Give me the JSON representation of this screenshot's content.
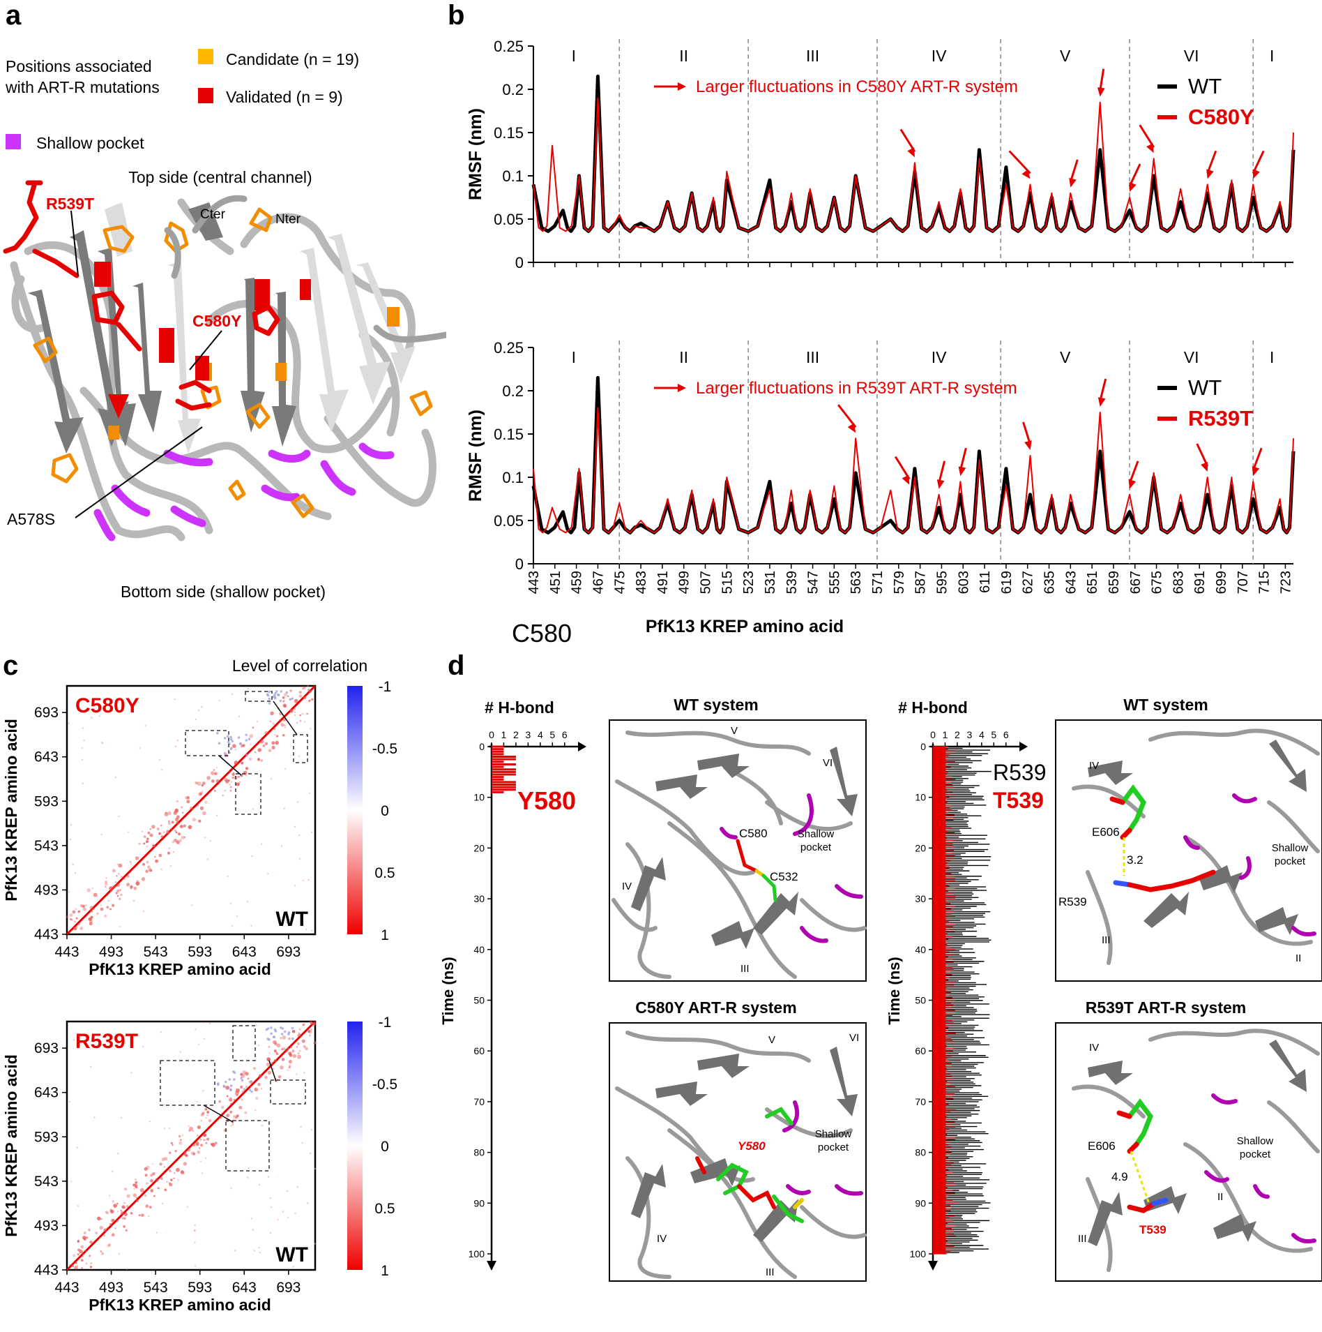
{
  "panels": {
    "a": "a",
    "b": "b",
    "c": "c",
    "d": "d"
  },
  "panel_a": {
    "legend_title_line1": "Positions associated",
    "legend_title_line2": "with ART-R mutations",
    "candidate": "Candidate (n = 19)",
    "validated": "Validated (n = 9)",
    "shallow": "Shallow pocket",
    "top_side": "Top side (central channel)",
    "bottom_side": "Bottom side (shallow pocket)",
    "cter": "Cter",
    "nter": "Nter",
    "r539t": "R539T",
    "c580y": "C580Y",
    "a578s": "A578S",
    "colors": {
      "candidate": "#FFB800",
      "validated": "#E60000",
      "shallow": "#CC33FF"
    }
  },
  "panel_b": {
    "ylabel": "RMSF (nm)",
    "xlabel": "PfK13 KREP amino acid",
    "yticks": [
      "0",
      "0.05",
      "0.1",
      "0.15",
      "0.2",
      "0.25"
    ],
    "xticks": [
      "443",
      "451",
      "459",
      "467",
      "475",
      "483",
      "491",
      "499",
      "507",
      "515",
      "523",
      "531",
      "539",
      "547",
      "555",
      "563",
      "571",
      "579",
      "587",
      "595",
      "603",
      "611",
      "619",
      "627",
      "635",
      "643",
      "651",
      "659",
      "667",
      "675",
      "683",
      "691",
      "699",
      "707",
      "715",
      "723"
    ],
    "blades": [
      "I",
      "II",
      "III",
      "IV",
      "V",
      "VI",
      "I"
    ],
    "top_note": "Larger fluctuations in C580Y ART-R system",
    "bottom_note": "Larger fluctuations in R539T ART-R system",
    "legend_wt": "WT",
    "legend_c580y": "C580Y",
    "legend_r539t": "R539T"
  },
  "panel_c": {
    "title": "Level of correlation",
    "ylabel": "PfK13 KREP amino acid",
    "xlabel": "PfK13 KREP amino acid",
    "ticks": [
      "443",
      "493",
      "543",
      "593",
      "643",
      "693"
    ],
    "top_label": "C580Y",
    "bottom_label": "R539T",
    "wt_label": "WT",
    "colorbar_ticks": [
      "-1",
      "-0.5",
      "0",
      "0.5",
      "1"
    ]
  },
  "panel_d": {
    "hbond_label": "# H-bond",
    "hbond_ticks": [
      "0",
      "1",
      "2",
      "3",
      "4",
      "5",
      "6"
    ],
    "time_label": "Time (ns)",
    "time_ticks": [
      "0",
      "10",
      "20",
      "30",
      "40",
      "50",
      "60",
      "70",
      "80",
      "90",
      "100"
    ],
    "c580": "C580",
    "y580": "Y580",
    "r539": "R539",
    "t539": "T539",
    "wt_system": "WT system",
    "c580y_system": "C580Y ART-R system",
    "r539t_system": "R539T ART-R system",
    "shallow1": "Shallow",
    "shallow2": "pocket",
    "l_c580": "C580",
    "l_c532": "C532",
    "l_y580": "Y580",
    "l_e606": "E606",
    "l_r539": "R539",
    "l_t539": "T539",
    "dist_wt": "3.2",
    "dist_mut": "4.9",
    "b_iv": "IV",
    "b_v": "V",
    "b_vi": "VI",
    "b_iii": "III",
    "b_ii": "II"
  },
  "chart_data": [
    {
      "type": "line",
      "title": "",
      "xlabel": "PfK13 KREP amino acid",
      "ylabel": "RMSF (nm)",
      "ylim": [
        0,
        0.25
      ],
      "xlim": [
        443,
        726
      ],
      "series": [
        {
          "name": "WT",
          "peaks_x": [
            443,
            454,
            460,
            467,
            475,
            483,
            493,
            502,
            510,
            515,
            531,
            539,
            546,
            555,
            563,
            576,
            585,
            594,
            602,
            609,
            619,
            628,
            636,
            643,
            654,
            665,
            674,
            684,
            694,
            703,
            711,
            721,
            726
          ],
          "peaks_y": [
            0.09,
            0.06,
            0.1,
            0.215,
            0.05,
            0.045,
            0.07,
            0.08,
            0.07,
            0.095,
            0.095,
            0.07,
            0.08,
            0.075,
            0.1,
            0.05,
            0.105,
            0.065,
            0.08,
            0.13,
            0.11,
            0.08,
            0.075,
            0.07,
            0.13,
            0.06,
            0.1,
            0.07,
            0.08,
            0.09,
            0.075,
            0.065,
            0.13
          ]
        },
        {
          "name": "C580Y",
          "peaks_x": [
            443,
            450,
            460,
            467,
            475,
            483,
            493,
            502,
            510,
            515,
            531,
            539,
            546,
            555,
            563,
            576,
            585,
            594,
            602,
            609,
            619,
            628,
            636,
            643,
            654,
            665,
            674,
            684,
            694,
            703,
            711,
            721,
            726
          ],
          "peaks_y": [
            0.09,
            0.135,
            0.1,
            0.19,
            0.055,
            0.04,
            0.07,
            0.08,
            0.075,
            0.105,
            0.085,
            0.08,
            0.085,
            0.075,
            0.1,
            0.05,
            0.115,
            0.07,
            0.085,
            0.12,
            0.09,
            0.09,
            0.08,
            0.08,
            0.185,
            0.075,
            0.12,
            0.085,
            0.09,
            0.095,
            0.09,
            0.07,
            0.15
          ]
        }
      ]
    },
    {
      "type": "line",
      "title": "",
      "xlabel": "PfK13 KREP amino acid",
      "ylabel": "RMSF (nm)",
      "ylim": [
        0,
        0.25
      ],
      "xlim": [
        443,
        726
      ],
      "series": [
        {
          "name": "WT",
          "peaks_x": [
            443,
            454,
            460,
            467,
            475,
            483,
            493,
            502,
            510,
            515,
            531,
            539,
            546,
            555,
            563,
            576,
            585,
            594,
            602,
            609,
            619,
            628,
            636,
            643,
            654,
            665,
            674,
            684,
            694,
            703,
            711,
            721,
            726
          ],
          "peaks_y": [
            0.09,
            0.06,
            0.105,
            0.215,
            0.05,
            0.045,
            0.07,
            0.08,
            0.07,
            0.095,
            0.095,
            0.07,
            0.08,
            0.075,
            0.105,
            0.05,
            0.11,
            0.065,
            0.08,
            0.13,
            0.11,
            0.08,
            0.075,
            0.07,
            0.13,
            0.06,
            0.1,
            0.07,
            0.08,
            0.09,
            0.075,
            0.065,
            0.13
          ]
        },
        {
          "name": "R539T",
          "peaks_x": [
            443,
            450,
            460,
            467,
            475,
            483,
            493,
            502,
            510,
            515,
            531,
            539,
            546,
            555,
            563,
            576,
            585,
            594,
            602,
            609,
            619,
            628,
            636,
            643,
            654,
            665,
            674,
            684,
            694,
            703,
            711,
            721,
            726
          ],
          "peaks_y": [
            0.11,
            0.065,
            0.11,
            0.18,
            0.07,
            0.05,
            0.075,
            0.085,
            0.075,
            0.1,
            0.085,
            0.085,
            0.085,
            0.09,
            0.145,
            0.085,
            0.1,
            0.08,
            0.095,
            0.12,
            0.09,
            0.125,
            0.08,
            0.08,
            0.175,
            0.08,
            0.105,
            0.08,
            0.1,
            0.1,
            0.095,
            0.075,
            0.145
          ]
        }
      ]
    },
    {
      "type": "heatmap",
      "title": "C580Y",
      "xlabel": "PfK13 KREP amino acid",
      "ylabel": "PfK13 KREP amino acid",
      "xlim": [
        443,
        723
      ],
      "ylim": [
        443,
        723
      ],
      "colorbar": [
        -1,
        1
      ]
    },
    {
      "type": "heatmap",
      "title": "R539T",
      "xlabel": "PfK13 KREP amino acid",
      "ylabel": "PfK13 KREP amino acid",
      "xlim": [
        443,
        723
      ],
      "ylim": [
        443,
        723
      ],
      "colorbar": [
        -1,
        1
      ]
    }
  ]
}
